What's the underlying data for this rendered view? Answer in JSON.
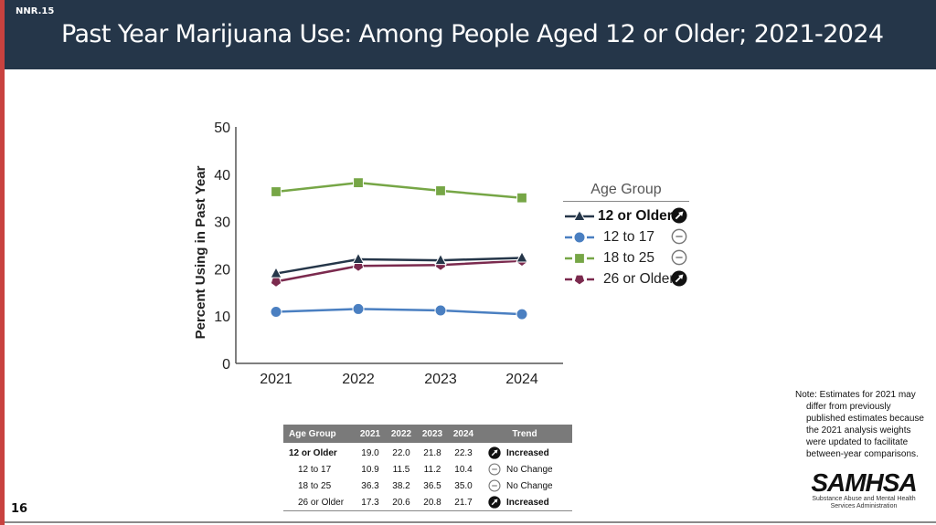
{
  "slide": {
    "code": "NNR.15",
    "title": "Past Year Marijuana Use: Among People Aged 12 or Older; 2021-2024",
    "page_number": "16",
    "accent_color": "#c8423f",
    "header_color": "#253649"
  },
  "chart_data": {
    "type": "line",
    "title": "Past Year Marijuana Use: Among People Aged 12 or Older; 2021-2024",
    "xlabel": "",
    "ylabel": "Percent Using in Past Year",
    "categories": [
      "2021",
      "2022",
      "2023",
      "2024"
    ],
    "ylim": [
      0,
      50
    ],
    "yticks": [
      "0",
      "10",
      "20",
      "30",
      "40",
      "50"
    ],
    "grid": false,
    "legend_title": "Age Group",
    "legend_position": "right",
    "series": [
      {
        "name": "12 or Older",
        "values": [
          19.0,
          22.0,
          21.8,
          22.3
        ],
        "color": "#253649",
        "marker": "triangle",
        "trend": "increased",
        "bold": true
      },
      {
        "name": "12 to 17",
        "values": [
          10.9,
          11.5,
          11.2,
          10.4
        ],
        "color": "#4a7fc1",
        "marker": "circle",
        "trend": "no-change",
        "bold": false
      },
      {
        "name": "18 to 25",
        "values": [
          36.3,
          38.2,
          36.5,
          35.0
        ],
        "color": "#76a646",
        "marker": "square",
        "trend": "no-change",
        "bold": false
      },
      {
        "name": "26 or Older",
        "values": [
          17.3,
          20.6,
          20.8,
          21.7
        ],
        "color": "#7b2a4e",
        "marker": "pentagon",
        "trend": "increased",
        "bold": false
      }
    ]
  },
  "table": {
    "headers": [
      "Age Group",
      "2021",
      "2022",
      "2023",
      "2024",
      "Trend"
    ],
    "rows": [
      {
        "group": "12 or Older",
        "values": [
          "19.0",
          "22.0",
          "21.8",
          "22.3"
        ],
        "trend_label": "Increased",
        "trend": "increased",
        "bold": true
      },
      {
        "group": "12 to 17",
        "values": [
          "10.9",
          "11.5",
          "11.2",
          "10.4"
        ],
        "trend_label": "No Change",
        "trend": "no-change",
        "bold": false
      },
      {
        "group": "18 to 25",
        "values": [
          "36.3",
          "38.2",
          "36.5",
          "35.0"
        ],
        "trend_label": "No Change",
        "trend": "no-change",
        "bold": false
      },
      {
        "group": "26 or Older",
        "values": [
          "17.3",
          "20.6",
          "20.8",
          "21.7"
        ],
        "trend_label": "Increased",
        "trend": "increased",
        "bold": false
      }
    ]
  },
  "note": {
    "line1": "Note: Estimates for 2021 may",
    "rest": [
      "differ from previously",
      "published estimates because",
      "the 2021 analysis weights",
      "were updated to facilitate",
      "between-year comparisons."
    ]
  },
  "logo": {
    "word": "SAMHSA",
    "sub1": "Substance Abuse and Mental Health",
    "sub2": "Services Administration"
  }
}
